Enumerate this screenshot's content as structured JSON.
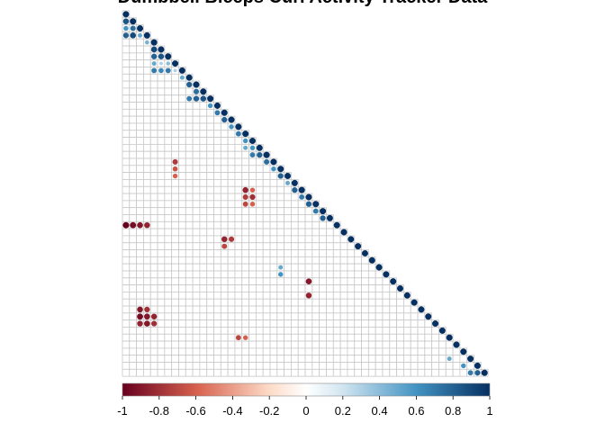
{
  "chart_data": {
    "type": "heatmap",
    "subtype": "correlation-matrix-lower-triangle",
    "title": "Dumbbell Biceps Curl Activity Tracker Data",
    "n_variables": 52,
    "variable_labels_shown": false,
    "marker": "circle (size and color scale with |r|)",
    "color_scale": {
      "min": -1,
      "max": 1,
      "stops": [
        {
          "value": -1.0,
          "color": "#67001f"
        },
        {
          "value": -0.6,
          "color": "#d6604d"
        },
        {
          "value": -0.2,
          "color": "#fddbc7"
        },
        {
          "value": 0.0,
          "color": "#ffffff"
        },
        {
          "value": 0.2,
          "color": "#d1e5f0"
        },
        {
          "value": 0.6,
          "color": "#4393c3"
        },
        {
          "value": 1.0,
          "color": "#053061"
        }
      ],
      "tick_labels": [
        "-1",
        "-0.8",
        "-0.6",
        "-0.4",
        "-0.2",
        "0",
        "0.2",
        "0.4",
        "0.6",
        "0.8",
        "1"
      ]
    },
    "notable_correlations": [
      {
        "row": 1,
        "col": 0,
        "value": 0.85
      },
      {
        "row": 2,
        "col": 0,
        "value": 0.6
      },
      {
        "row": 2,
        "col": 1,
        "value": 0.75
      },
      {
        "row": 3,
        "col": 0,
        "value": 0.8
      },
      {
        "row": 3,
        "col": 1,
        "value": 0.9
      },
      {
        "row": 3,
        "col": 2,
        "value": 0.5
      },
      {
        "row": 4,
        "col": 3,
        "value": 0.45
      },
      {
        "row": 5,
        "col": 4,
        "value": 0.9
      },
      {
        "row": 6,
        "col": 4,
        "value": 0.8
      },
      {
        "row": 6,
        "col": 5,
        "value": 0.85
      },
      {
        "row": 7,
        "col": 4,
        "value": 0.5
      },
      {
        "row": 7,
        "col": 5,
        "value": 0.3
      },
      {
        "row": 7,
        "col": 6,
        "value": 0.4
      },
      {
        "row": 8,
        "col": 4,
        "value": 0.7
      },
      {
        "row": 8,
        "col": 5,
        "value": 0.65
      },
      {
        "row": 8,
        "col": 6,
        "value": 0.7
      },
      {
        "row": 8,
        "col": 7,
        "value": 0.3
      },
      {
        "row": 9,
        "col": 8,
        "value": 0.5
      },
      {
        "row": 10,
        "col": 9,
        "value": 0.8
      },
      {
        "row": 11,
        "col": 10,
        "value": 0.75
      },
      {
        "row": 12,
        "col": 9,
        "value": 0.7
      },
      {
        "row": 12,
        "col": 10,
        "value": 0.8
      },
      {
        "row": 12,
        "col": 11,
        "value": 0.85
      },
      {
        "row": 13,
        "col": 12,
        "value": 0.6
      },
      {
        "row": 14,
        "col": 13,
        "value": 0.7
      },
      {
        "row": 15,
        "col": 14,
        "value": 0.8
      },
      {
        "row": 16,
        "col": 15,
        "value": 0.6
      },
      {
        "row": 17,
        "col": 16,
        "value": 0.7
      },
      {
        "row": 18,
        "col": 17,
        "value": 0.6
      },
      {
        "row": 19,
        "col": 17,
        "value": 0.5
      },
      {
        "row": 19,
        "col": 18,
        "value": 0.6
      },
      {
        "row": 20,
        "col": 18,
        "value": 0.7
      },
      {
        "row": 20,
        "col": 19,
        "value": 0.8
      },
      {
        "row": 21,
        "col": 20,
        "value": 0.75
      },
      {
        "row": 22,
        "col": 21,
        "value": 0.6
      },
      {
        "row": 23,
        "col": 22,
        "value": 0.8
      },
      {
        "row": 24,
        "col": 23,
        "value": 0.5
      },
      {
        "row": 25,
        "col": 24,
        "value": 0.8
      },
      {
        "row": 26,
        "col": 25,
        "value": 0.7
      },
      {
        "row": 27,
        "col": 26,
        "value": 0.8
      },
      {
        "row": 28,
        "col": 27,
        "value": 0.7
      },
      {
        "row": 29,
        "col": 28,
        "value": 0.8
      },
      {
        "row": 30,
        "col": 0,
        "value": -1.0
      },
      {
        "row": 30,
        "col": 1,
        "value": -0.95
      },
      {
        "row": 30,
        "col": 2,
        "value": -0.9
      },
      {
        "row": 30,
        "col": 3,
        "value": -0.85
      },
      {
        "row": 21,
        "col": 7,
        "value": -0.75
      },
      {
        "row": 22,
        "col": 7,
        "value": -0.65
      },
      {
        "row": 23,
        "col": 7,
        "value": -0.6
      },
      {
        "row": 25,
        "col": 17,
        "value": -0.85
      },
      {
        "row": 25,
        "col": 18,
        "value": -0.6
      },
      {
        "row": 26,
        "col": 17,
        "value": -0.75
      },
      {
        "row": 26,
        "col": 18,
        "value": -0.8
      },
      {
        "row": 27,
        "col": 17,
        "value": -0.7
      },
      {
        "row": 27,
        "col": 18,
        "value": -0.6
      },
      {
        "row": 32,
        "col": 14,
        "value": -0.85
      },
      {
        "row": 32,
        "col": 15,
        "value": -0.75
      },
      {
        "row": 33,
        "col": 14,
        "value": -0.7
      },
      {
        "row": 36,
        "col": 22,
        "value": 0.5
      },
      {
        "row": 37,
        "col": 22,
        "value": 0.6
      },
      {
        "row": 38,
        "col": 26,
        "value": -0.9
      },
      {
        "row": 40,
        "col": 26,
        "value": -0.85
      },
      {
        "row": 42,
        "col": 2,
        "value": -0.9
      },
      {
        "row": 42,
        "col": 3,
        "value": -0.8
      },
      {
        "row": 43,
        "col": 2,
        "value": -0.95
      },
      {
        "row": 43,
        "col": 3,
        "value": -0.9
      },
      {
        "row": 43,
        "col": 4,
        "value": -0.85
      },
      {
        "row": 44,
        "col": 2,
        "value": -0.85
      },
      {
        "row": 44,
        "col": 3,
        "value": -0.9
      },
      {
        "row": 44,
        "col": 4,
        "value": -0.8
      },
      {
        "row": 46,
        "col": 16,
        "value": -0.7
      },
      {
        "row": 46,
        "col": 17,
        "value": -0.6
      },
      {
        "row": 49,
        "col": 46,
        "value": 0.5
      },
      {
        "row": 50,
        "col": 48,
        "value": 0.6
      },
      {
        "row": 51,
        "col": 49,
        "value": 0.7
      },
      {
        "row": 51,
        "col": 50,
        "value": 0.8
      }
    ]
  }
}
